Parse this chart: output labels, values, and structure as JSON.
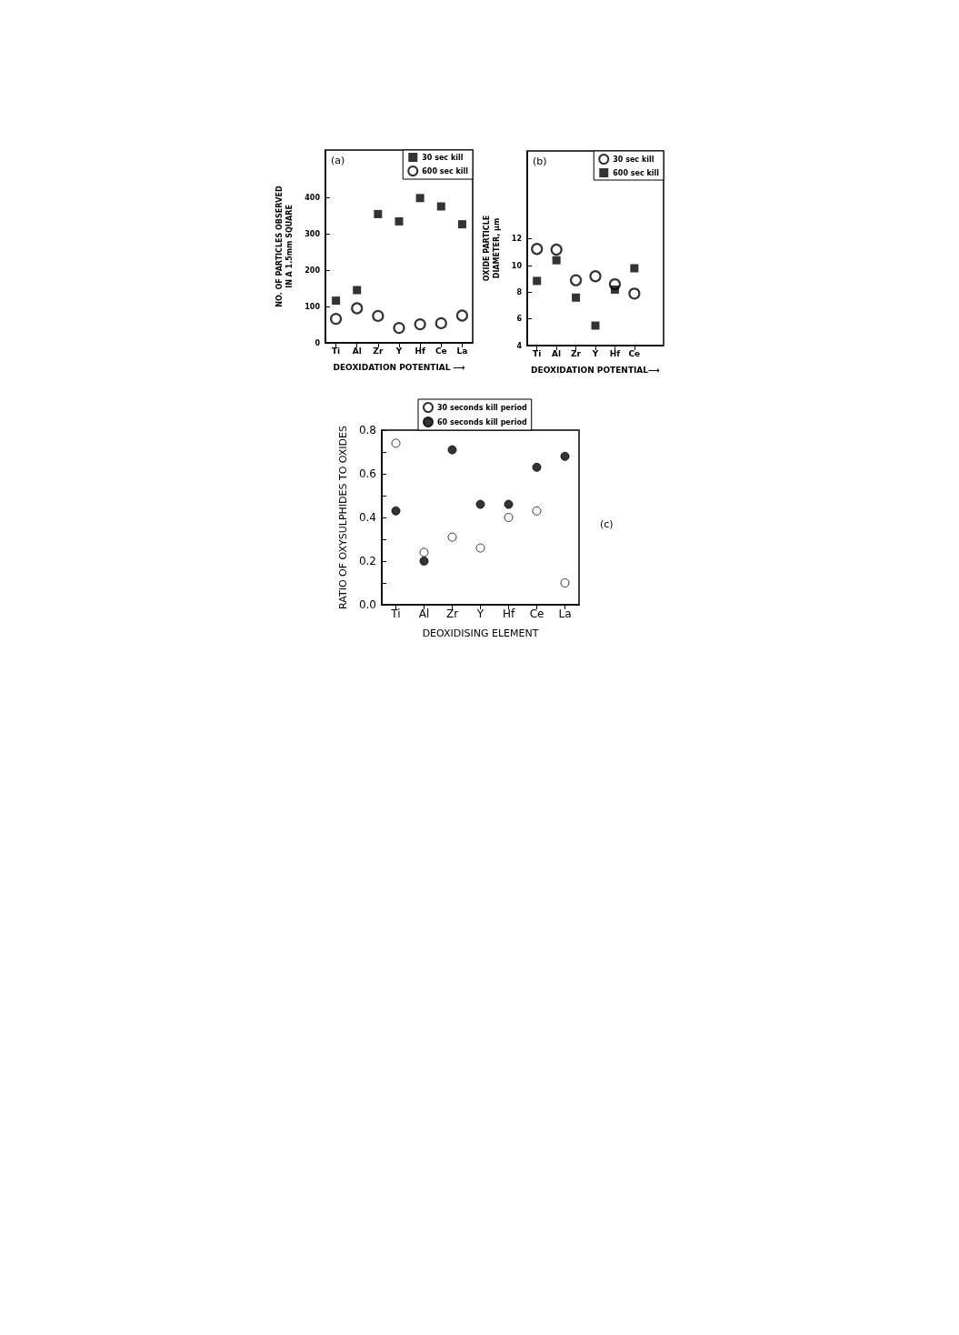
{
  "chart_data": [
    {
      "type": "scatter",
      "annotations": [
        "(a)"
      ],
      "xlabel": "DEOXIDATION POTENTIAL ⟶",
      "ylabel": "NO. OF PARTICLES OBSERVED\nIN A 1.5mm SQUARE",
      "categories": [
        "Ti",
        "Al",
        "Zr",
        "Y",
        "Hf",
        "Ce",
        "La"
      ],
      "ylim": [
        0,
        530
      ],
      "yticks": [
        0,
        100,
        200,
        300,
        400
      ],
      "legend": "top right",
      "series": [
        {
          "name": "30 sec kill",
          "color": "#000000",
          "marker": "square",
          "values": [
            116,
            145,
            354,
            334,
            398,
            375,
            326
          ]
        },
        {
          "name": "600 sec kill",
          "color": "#ffffff",
          "marker": "circle",
          "values": [
            66,
            95,
            74,
            41,
            51,
            54,
            75
          ]
        }
      ]
    },
    {
      "type": "scatter",
      "annotations": [
        "(b)"
      ],
      "xlabel": "DEOXIDATION POTENTIAL⟶",
      "ylabel": "OXIDE PARTICLE\nDIAMETER, µm",
      "categories": [
        "Ti",
        "Al",
        "Zr",
        "Y",
        "Hf",
        "Ce",
        null
      ],
      "ylim": [
        4,
        18.6
      ],
      "yticks": [
        4,
        6,
        8,
        10,
        12
      ],
      "legend": "top right",
      "series": [
        {
          "name": "30 sec kill",
          "color": "#ffffff",
          "marker": "circle",
          "values": [
            11.25,
            11.2,
            8.9,
            9.2,
            8.6,
            7.9,
            null
          ]
        },
        {
          "name": "600 sec kill",
          "color": "#000000",
          "marker": "square",
          "values": [
            8.85,
            10.4,
            7.6,
            5.5,
            8.2,
            9.8,
            null
          ]
        }
      ]
    },
    {
      "type": "scatter",
      "annotations": [
        "(c)"
      ],
      "xlabel": "DEOXIDISING ELEMENT",
      "ylabel": "RATIO OF OXYSULPHIDES TO OXIDES",
      "categories": [
        "Ti",
        "Al",
        "Zr",
        "Y",
        "Hf",
        "Ce",
        "La"
      ],
      "ylim": [
        0,
        0.8
      ],
      "yticks": [
        {
          "value": 0,
          "label": "0.0"
        },
        {
          "value": 0.1,
          "label": null
        },
        0.2,
        {
          "value": 0.3,
          "label": null
        },
        0.4,
        {
          "value": 0.5,
          "label": null
        },
        0.6,
        {
          "value": 0.7,
          "label": null
        },
        0.8
      ],
      "legend": "top",
      "series": [
        {
          "name": "30 seconds kill period",
          "color": "#ffffff",
          "marker": "circle",
          "values": [
            0.74,
            0.24,
            0.31,
            0.26,
            0.4,
            0.43,
            0.1
          ]
        },
        {
          "name": "60 seconds kill period",
          "color": "#000000",
          "marker": "circle",
          "values": [
            0.43,
            0.2,
            0.71,
            0.46,
            0.46,
            0.63,
            0.68
          ]
        }
      ]
    }
  ]
}
